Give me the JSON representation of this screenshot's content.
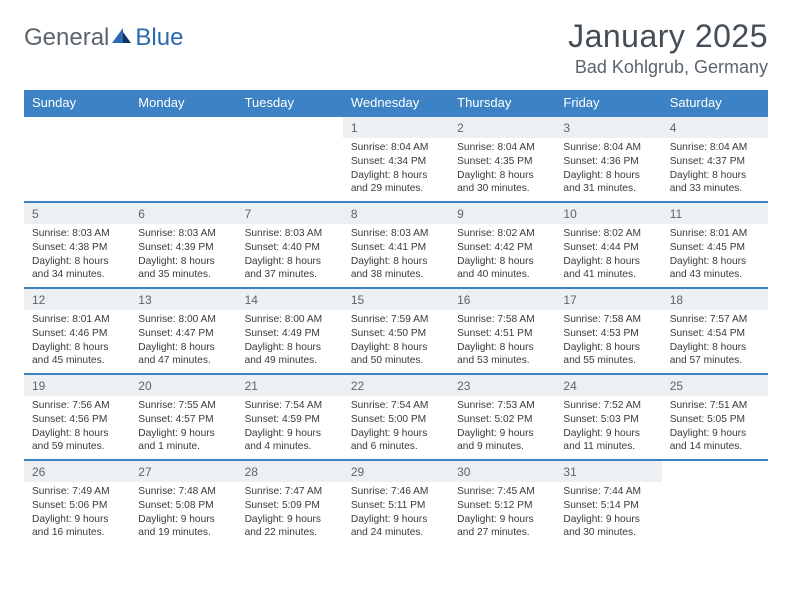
{
  "brand": {
    "part1": "General",
    "part2": "Blue"
  },
  "title": "January 2025",
  "location": "Bad Kohlgrub, Germany",
  "colors": {
    "header_bg": "#3d82c4",
    "header_text": "#ffffff",
    "daynum_bg": "#edf0f2",
    "rule": "#3d82c4",
    "brand_gray": "#5a6570",
    "brand_blue": "#2a6ab0"
  },
  "daysOfWeek": [
    "Sunday",
    "Monday",
    "Tuesday",
    "Wednesday",
    "Thursday",
    "Friday",
    "Saturday"
  ],
  "weeks": [
    [
      null,
      null,
      null,
      {
        "n": "1",
        "sunrise": "8:04 AM",
        "sunset": "4:34 PM",
        "daylight": "8 hours and 29 minutes."
      },
      {
        "n": "2",
        "sunrise": "8:04 AM",
        "sunset": "4:35 PM",
        "daylight": "8 hours and 30 minutes."
      },
      {
        "n": "3",
        "sunrise": "8:04 AM",
        "sunset": "4:36 PM",
        "daylight": "8 hours and 31 minutes."
      },
      {
        "n": "4",
        "sunrise": "8:04 AM",
        "sunset": "4:37 PM",
        "daylight": "8 hours and 33 minutes."
      }
    ],
    [
      {
        "n": "5",
        "sunrise": "8:03 AM",
        "sunset": "4:38 PM",
        "daylight": "8 hours and 34 minutes."
      },
      {
        "n": "6",
        "sunrise": "8:03 AM",
        "sunset": "4:39 PM",
        "daylight": "8 hours and 35 minutes."
      },
      {
        "n": "7",
        "sunrise": "8:03 AM",
        "sunset": "4:40 PM",
        "daylight": "8 hours and 37 minutes."
      },
      {
        "n": "8",
        "sunrise": "8:03 AM",
        "sunset": "4:41 PM",
        "daylight": "8 hours and 38 minutes."
      },
      {
        "n": "9",
        "sunrise": "8:02 AM",
        "sunset": "4:42 PM",
        "daylight": "8 hours and 40 minutes."
      },
      {
        "n": "10",
        "sunrise": "8:02 AM",
        "sunset": "4:44 PM",
        "daylight": "8 hours and 41 minutes."
      },
      {
        "n": "11",
        "sunrise": "8:01 AM",
        "sunset": "4:45 PM",
        "daylight": "8 hours and 43 minutes."
      }
    ],
    [
      {
        "n": "12",
        "sunrise": "8:01 AM",
        "sunset": "4:46 PM",
        "daylight": "8 hours and 45 minutes."
      },
      {
        "n": "13",
        "sunrise": "8:00 AM",
        "sunset": "4:47 PM",
        "daylight": "8 hours and 47 minutes."
      },
      {
        "n": "14",
        "sunrise": "8:00 AM",
        "sunset": "4:49 PM",
        "daylight": "8 hours and 49 minutes."
      },
      {
        "n": "15",
        "sunrise": "7:59 AM",
        "sunset": "4:50 PM",
        "daylight": "8 hours and 50 minutes."
      },
      {
        "n": "16",
        "sunrise": "7:58 AM",
        "sunset": "4:51 PM",
        "daylight": "8 hours and 53 minutes."
      },
      {
        "n": "17",
        "sunrise": "7:58 AM",
        "sunset": "4:53 PM",
        "daylight": "8 hours and 55 minutes."
      },
      {
        "n": "18",
        "sunrise": "7:57 AM",
        "sunset": "4:54 PM",
        "daylight": "8 hours and 57 minutes."
      }
    ],
    [
      {
        "n": "19",
        "sunrise": "7:56 AM",
        "sunset": "4:56 PM",
        "daylight": "8 hours and 59 minutes."
      },
      {
        "n": "20",
        "sunrise": "7:55 AM",
        "sunset": "4:57 PM",
        "daylight": "9 hours and 1 minute."
      },
      {
        "n": "21",
        "sunrise": "7:54 AM",
        "sunset": "4:59 PM",
        "daylight": "9 hours and 4 minutes."
      },
      {
        "n": "22",
        "sunrise": "7:54 AM",
        "sunset": "5:00 PM",
        "daylight": "9 hours and 6 minutes."
      },
      {
        "n": "23",
        "sunrise": "7:53 AM",
        "sunset": "5:02 PM",
        "daylight": "9 hours and 9 minutes."
      },
      {
        "n": "24",
        "sunrise": "7:52 AM",
        "sunset": "5:03 PM",
        "daylight": "9 hours and 11 minutes."
      },
      {
        "n": "25",
        "sunrise": "7:51 AM",
        "sunset": "5:05 PM",
        "daylight": "9 hours and 14 minutes."
      }
    ],
    [
      {
        "n": "26",
        "sunrise": "7:49 AM",
        "sunset": "5:06 PM",
        "daylight": "9 hours and 16 minutes."
      },
      {
        "n": "27",
        "sunrise": "7:48 AM",
        "sunset": "5:08 PM",
        "daylight": "9 hours and 19 minutes."
      },
      {
        "n": "28",
        "sunrise": "7:47 AM",
        "sunset": "5:09 PM",
        "daylight": "9 hours and 22 minutes."
      },
      {
        "n": "29",
        "sunrise": "7:46 AM",
        "sunset": "5:11 PM",
        "daylight": "9 hours and 24 minutes."
      },
      {
        "n": "30",
        "sunrise": "7:45 AM",
        "sunset": "5:12 PM",
        "daylight": "9 hours and 27 minutes."
      },
      {
        "n": "31",
        "sunrise": "7:44 AM",
        "sunset": "5:14 PM",
        "daylight": "9 hours and 30 minutes."
      },
      null
    ]
  ],
  "labels": {
    "sunrise": "Sunrise:",
    "sunset": "Sunset:",
    "daylight": "Daylight:"
  }
}
